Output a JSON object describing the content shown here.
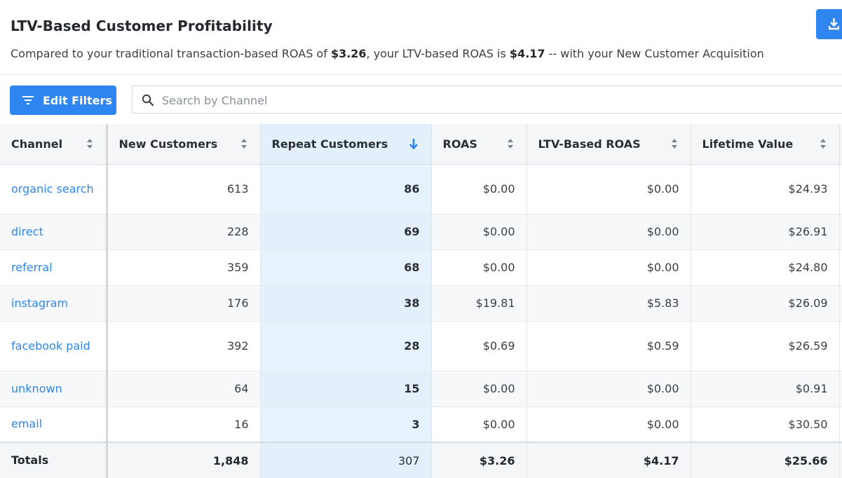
{
  "header": {
    "title": "LTV-Based Customer Profitability",
    "subtitle_pre": "Compared to your traditional transaction-based ROAS of ",
    "roas_value": "$3.26",
    "subtitle_mid": ", your LTV-based ROAS is ",
    "ltv_roas_value": "$4.17",
    "subtitle_post": " -- with your New Customer Acquisition"
  },
  "toolbar": {
    "download_icon": "download-icon",
    "edit_filters_label": "Edit Filters",
    "filter_icon": "filter-icon",
    "search_placeholder": "Search by Channel",
    "search_value": "",
    "search_icon": "search-icon"
  },
  "table": {
    "columns": [
      "Channel",
      "New Customers",
      "Repeat Customers",
      "ROAS",
      "LTV-Based ROAS",
      "Lifetime Value"
    ],
    "sorted_column": "Repeat Customers",
    "sort_direction": "descending",
    "rows": [
      {
        "channel": "organic search",
        "new_customers": "613",
        "repeat_customers": "86",
        "roas": "$0.00",
        "ltv_roas": "$0.00",
        "lifetime_value": "$24.93"
      },
      {
        "channel": "direct",
        "new_customers": "228",
        "repeat_customers": "69",
        "roas": "$0.00",
        "ltv_roas": "$0.00",
        "lifetime_value": "$26.91"
      },
      {
        "channel": "referral",
        "new_customers": "359",
        "repeat_customers": "68",
        "roas": "$0.00",
        "ltv_roas": "$0.00",
        "lifetime_value": "$24.80"
      },
      {
        "channel": "instagram",
        "new_customers": "176",
        "repeat_customers": "38",
        "roas": "$19.81",
        "ltv_roas": "$5.83",
        "lifetime_value": "$26.09"
      },
      {
        "channel": "facebook paid",
        "new_customers": "392",
        "repeat_customers": "28",
        "roas": "$0.69",
        "ltv_roas": "$0.59",
        "lifetime_value": "$26.59"
      },
      {
        "channel": "unknown",
        "new_customers": "64",
        "repeat_customers": "15",
        "roas": "$0.00",
        "ltv_roas": "$0.00",
        "lifetime_value": "$0.91"
      },
      {
        "channel": "email",
        "new_customers": "16",
        "repeat_customers": "3",
        "roas": "$0.00",
        "ltv_roas": "$0.00",
        "lifetime_value": "$30.50"
      }
    ],
    "totals": {
      "label": "Totals",
      "new_customers": "1,848",
      "repeat_customers": "307",
      "roas": "$3.26",
      "ltv_roas": "$4.17",
      "lifetime_value": "$25.66"
    }
  },
  "colors": {
    "accent": "#2f86f0",
    "sorted_column_bg": "#e6f2fd",
    "header_bg": "#f4f6f8"
  }
}
